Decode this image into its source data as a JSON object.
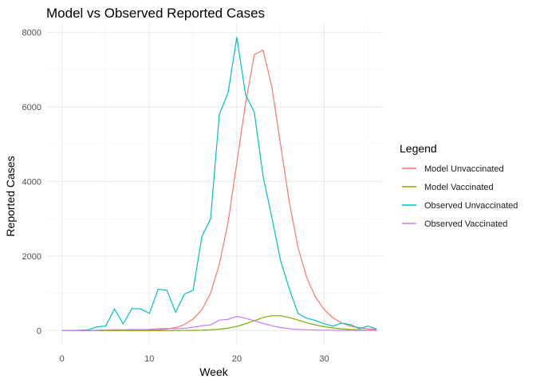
{
  "chart_data": {
    "type": "line",
    "title": "Model vs Observed Reported Cases",
    "xlabel": "Week",
    "ylabel": "Reported Cases",
    "xlim": [
      -1.8,
      36.8
    ],
    "ylim": [
      -380,
      8250
    ],
    "xticks": [
      0,
      10,
      20,
      30
    ],
    "yticks": [
      0,
      2000,
      4000,
      6000,
      8000
    ],
    "x_minor": [
      5,
      15,
      25,
      35
    ],
    "y_minor": [
      1000,
      3000,
      5000,
      7000
    ],
    "grid": true,
    "legend": {
      "title": "Legend",
      "position": "right"
    },
    "series": [
      {
        "name": "Model Unvaccinated",
        "color": "#F8766D",
        "x": [
          1,
          2,
          3,
          4,
          5,
          6,
          7,
          8,
          9,
          10,
          11,
          12,
          13,
          14,
          15,
          16,
          17,
          18,
          19,
          20,
          21,
          22,
          23,
          24,
          25,
          26,
          27,
          28,
          29,
          30,
          31,
          32,
          33,
          34,
          35,
          36
        ],
        "values": [
          0,
          0,
          0,
          2,
          4,
          6,
          8,
          10,
          12,
          15,
          20,
          40,
          80,
          160,
          310,
          560,
          1000,
          1780,
          2900,
          4500,
          6100,
          7400,
          7530,
          6550,
          5000,
          3450,
          2230,
          1420,
          900,
          560,
          340,
          200,
          120,
          75,
          45,
          25
        ]
      },
      {
        "name": "Model Vaccinated",
        "color": "#7CAE00",
        "x": [
          1,
          2,
          3,
          4,
          5,
          6,
          7,
          8,
          9,
          10,
          11,
          12,
          13,
          14,
          15,
          16,
          17,
          18,
          19,
          20,
          21,
          22,
          23,
          24,
          25,
          26,
          27,
          28,
          29,
          30,
          31,
          32,
          33,
          34,
          35,
          36
        ],
        "values": [
          0,
          0,
          0,
          0,
          0,
          0,
          0,
          0,
          0,
          0,
          0,
          0,
          2,
          4,
          6,
          10,
          18,
          35,
          65,
          110,
          180,
          260,
          350,
          400,
          395,
          350,
          280,
          210,
          150,
          105,
          70,
          45,
          28,
          18,
          10,
          6
        ]
      },
      {
        "name": "Observed Unvaccinated",
        "color": "#00BFC4",
        "x": [
          0,
          1,
          2,
          3,
          4,
          5,
          6,
          7,
          8,
          9,
          10,
          11,
          12,
          13,
          14,
          15,
          16,
          17,
          18,
          19,
          20,
          21,
          22,
          23,
          24,
          25,
          26,
          27,
          28,
          29,
          30,
          31,
          32,
          33,
          34,
          35,
          36
        ],
        "values": [
          0,
          0,
          10,
          20,
          100,
          120,
          580,
          180,
          590,
          580,
          460,
          1110,
          1080,
          490,
          980,
          1080,
          2520,
          3000,
          5800,
          6380,
          7870,
          6330,
          5860,
          4150,
          3040,
          1880,
          1120,
          460,
          330,
          270,
          180,
          120,
          200,
          160,
          50,
          120,
          40
        ]
      },
      {
        "name": "Observed Vaccinated",
        "color": "#C77CFF",
        "x": [
          0,
          1,
          2,
          3,
          4,
          5,
          6,
          7,
          8,
          9,
          10,
          11,
          12,
          13,
          14,
          15,
          16,
          17,
          18,
          19,
          20,
          21,
          22,
          23,
          24,
          25,
          26,
          27,
          28,
          29,
          30,
          31,
          32,
          33,
          34,
          35,
          36
        ],
        "values": [
          0,
          0,
          0,
          0,
          10,
          15,
          25,
          20,
          30,
          25,
          30,
          50,
          55,
          50,
          60,
          90,
          130,
          150,
          280,
          300,
          380,
          330,
          260,
          190,
          130,
          80,
          50,
          30,
          20,
          15,
          10,
          10,
          5,
          5,
          5,
          5,
          5
        ]
      }
    ]
  }
}
